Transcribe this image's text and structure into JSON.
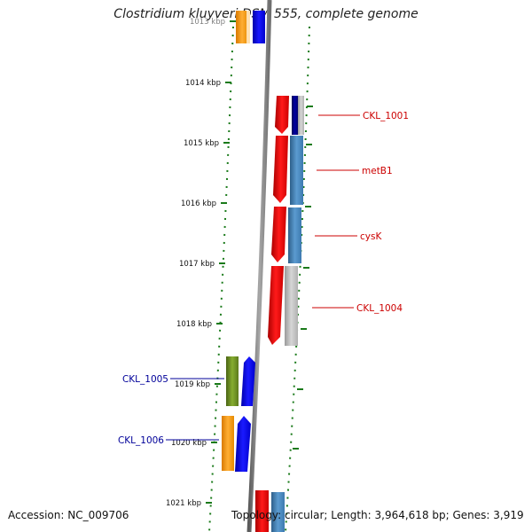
{
  "title": "Clostridium kluyveri DSM 555, complete genome",
  "accession_text": "Accession: NC_009706",
  "summary_text": "Topology: circular; Length: 3,964,618 bp; Genes: 3,919",
  "kbp_ticks": [
    {
      "label": "1013 kbp"
    },
    {
      "label": "1014 kbp"
    },
    {
      "label": "1015 kbp"
    },
    {
      "label": "1016 kbp"
    },
    {
      "label": "1017 kbp"
    },
    {
      "label": "1018 kbp"
    },
    {
      "label": "1019 kbp"
    },
    {
      "label": "1020 kbp"
    },
    {
      "label": "1021 kbp"
    }
  ],
  "gene_labels": [
    {
      "name": "CKL_1001",
      "strand": "forward"
    },
    {
      "name": "metB1",
      "strand": "forward"
    },
    {
      "name": "cysK",
      "strand": "forward"
    },
    {
      "name": "CKL_1004",
      "strand": "forward"
    },
    {
      "name": "CKL_1005",
      "strand": "reverse"
    },
    {
      "name": "CKL_1006",
      "strand": "reverse"
    }
  ],
  "colors": {
    "forward_label": "#cc0000",
    "reverse_label": "#000099",
    "tick": "#1a7a1a",
    "backbone": "#808080",
    "gene_red": "#ee0000",
    "gene_blue": "#0000ee",
    "gene_steel": "#4682b4",
    "gene_gray": "#b8b8b8",
    "gene_navy": "#000080",
    "gene_orange": "#ff9900",
    "gene_olive": "#6b8e23"
  }
}
